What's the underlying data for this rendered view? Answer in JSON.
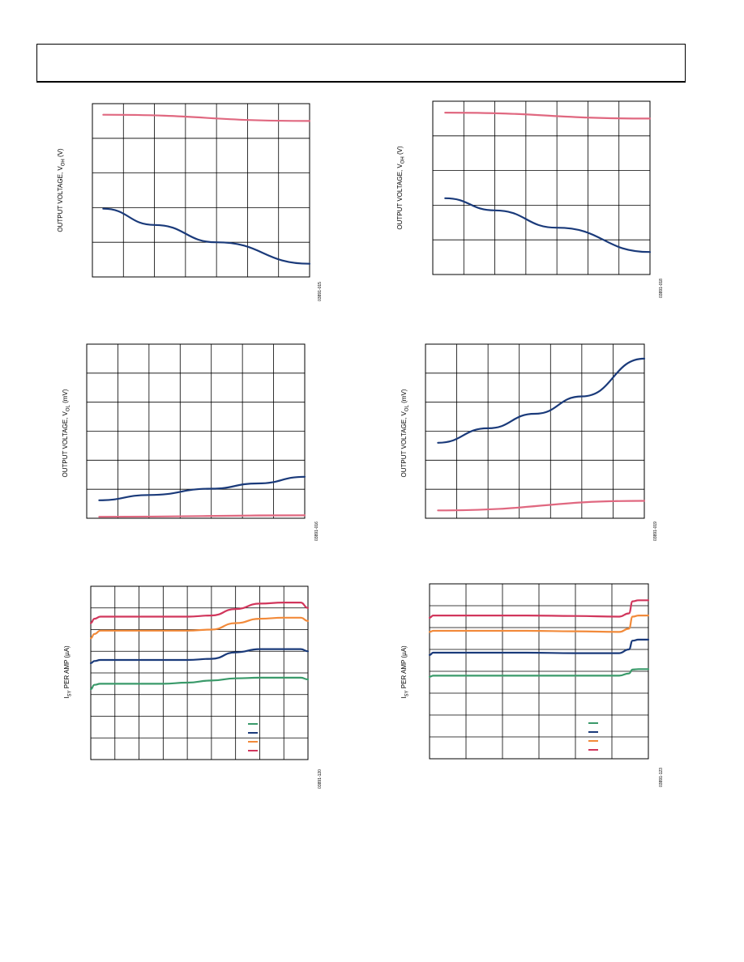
{
  "page": {
    "header_title": ""
  },
  "chart_data": [
    {
      "id": "voh-1",
      "type": "line",
      "ylabel_main": "OUTPUT VOLTAGE, V",
      "ylabel_sub": "OH",
      "ylabel_unit": " (V)",
      "code": "03891-015",
      "xlim": [
        0,
        7
      ],
      "ylim": [
        0,
        5
      ],
      "x_grid": 7,
      "y_grid": 5,
      "series": [
        {
          "color": "#e06880",
          "x": [
            0.35,
            7
          ],
          "y": [
            4.68,
            4.5
          ]
        },
        {
          "color": "#1a3a7a",
          "x": [
            0.35,
            2,
            4,
            7
          ],
          "y": [
            1.97,
            1.5,
            1.0,
            0.38
          ]
        }
      ]
    },
    {
      "id": "voh-2",
      "type": "line",
      "ylabel_main": "OUTPUT VOLTAGE, V",
      "ylabel_sub": "OH",
      "ylabel_unit": " (V)",
      "code": "03891-018",
      "xlim": [
        0,
        7
      ],
      "ylim": [
        0,
        5
      ],
      "x_grid": 7,
      "y_grid": 5,
      "series": [
        {
          "color": "#e06880",
          "x": [
            0.4,
            7
          ],
          "y": [
            4.67,
            4.5
          ]
        },
        {
          "color": "#1a3a7a",
          "x": [
            0.4,
            2,
            4,
            7
          ],
          "y": [
            2.2,
            1.85,
            1.35,
            0.65
          ]
        }
      ]
    },
    {
      "id": "vol-1",
      "type": "line",
      "ylabel_main": "OUTPUT VOLTAGE, V",
      "ylabel_sub": "OL",
      "ylabel_unit": " (mV)",
      "code": "03891-016",
      "xlim": [
        0,
        7
      ],
      "ylim": [
        0,
        6
      ],
      "x_grid": 7,
      "y_grid": 6,
      "series": [
        {
          "color": "#1a3a7a",
          "x": [
            0.4,
            2,
            4,
            5.5,
            7
          ],
          "y": [
            0.62,
            0.8,
            1.02,
            1.2,
            1.43
          ]
        },
        {
          "color": "#e06880",
          "x": [
            0.4,
            7
          ],
          "y": [
            0.05,
            0.1
          ]
        }
      ]
    },
    {
      "id": "vol-2",
      "type": "line",
      "ylabel_main": "OUTPUT VOLTAGE, V",
      "ylabel_sub": "OL",
      "ylabel_unit": " (mV)",
      "code": "03891-019",
      "xlim": [
        0,
        7
      ],
      "ylim": [
        0,
        6
      ],
      "x_grid": 7,
      "y_grid": 6,
      "series": [
        {
          "color": "#1a3a7a",
          "x": [
            0.4,
            2,
            3.5,
            5,
            7
          ],
          "y": [
            2.6,
            3.1,
            3.6,
            4.2,
            5.5
          ]
        },
        {
          "color": "#e06880",
          "x": [
            0.4,
            7
          ],
          "y": [
            0.27,
            0.6
          ]
        }
      ]
    },
    {
      "id": "isv-1",
      "type": "line",
      "ylabel_main": "I",
      "ylabel_sub": "SY",
      "ylabel_unit": " PER AMP (µA)",
      "code": "03891-120",
      "xlim": [
        0,
        9
      ],
      "ylim": [
        0,
        8
      ],
      "x_grid": 9,
      "y_grid": 8,
      "legend": true,
      "series": [
        {
          "color": "#d1365c",
          "x": [
            0,
            0.15,
            0.4,
            1,
            3,
            4,
            5,
            6,
            7,
            8,
            8.7,
            9
          ],
          "y": [
            6.3,
            6.5,
            6.6,
            6.6,
            6.6,
            6.6,
            6.65,
            6.95,
            7.2,
            7.25,
            7.25,
            7.0
          ]
        },
        {
          "color": "#f28a3a",
          "x": [
            0,
            0.15,
            0.4,
            1,
            3,
            4,
            5,
            6,
            7,
            8,
            8.7,
            9
          ],
          "y": [
            5.6,
            5.8,
            5.95,
            5.95,
            5.95,
            5.95,
            6.0,
            6.3,
            6.5,
            6.55,
            6.55,
            6.4
          ]
        },
        {
          "color": "#1a3a7a",
          "x": [
            0,
            0.15,
            0.4,
            1,
            3,
            4,
            5,
            6,
            7,
            8,
            8.7,
            9
          ],
          "y": [
            4.45,
            4.55,
            4.6,
            4.6,
            4.6,
            4.6,
            4.65,
            4.95,
            5.1,
            5.1,
            5.1,
            5.0
          ]
        },
        {
          "color": "#3a9a6a",
          "x": [
            0,
            0.15,
            0.4,
            1,
            3,
            4,
            5,
            6,
            7,
            8,
            8.7,
            9
          ],
          "y": [
            3.25,
            3.45,
            3.5,
            3.5,
            3.5,
            3.55,
            3.65,
            3.75,
            3.78,
            3.78,
            3.78,
            3.7
          ]
        }
      ]
    },
    {
      "id": "isv-2",
      "type": "line",
      "ylabel_main": "I",
      "ylabel_sub": "SY",
      "ylabel_unit": " PER AMP (µA)",
      "code": "03891-123",
      "xlim": [
        0,
        9
      ],
      "ylim": [
        0,
        8
      ],
      "x_grid": 6,
      "y_grid": 8,
      "legend": true,
      "series": [
        {
          "color": "#d1365c",
          "x": [
            0,
            0.15,
            1,
            4,
            6,
            7.8,
            8.2,
            8.35,
            8.6,
            9
          ],
          "y": [
            6.45,
            6.55,
            6.55,
            6.55,
            6.53,
            6.5,
            6.65,
            7.2,
            7.25,
            7.25
          ]
        },
        {
          "color": "#f28a3a",
          "x": [
            0,
            0.15,
            1,
            4,
            6,
            7.8,
            8.2,
            8.35,
            8.6,
            9
          ],
          "y": [
            5.8,
            5.85,
            5.85,
            5.85,
            5.83,
            5.8,
            5.95,
            6.5,
            6.55,
            6.55
          ]
        },
        {
          "color": "#1a3a7a",
          "x": [
            0,
            0.15,
            1,
            4,
            6,
            7.8,
            8.2,
            8.35,
            8.6,
            9
          ],
          "y": [
            4.75,
            4.85,
            4.85,
            4.85,
            4.83,
            4.83,
            5.0,
            5.4,
            5.45,
            5.45
          ]
        },
        {
          "color": "#3a9a6a",
          "x": [
            0,
            0.15,
            1,
            4,
            6,
            7.8,
            8.2,
            8.35,
            8.6,
            9
          ],
          "y": [
            3.75,
            3.8,
            3.8,
            3.8,
            3.8,
            3.8,
            3.9,
            4.08,
            4.1,
            4.1
          ]
        }
      ]
    }
  ]
}
